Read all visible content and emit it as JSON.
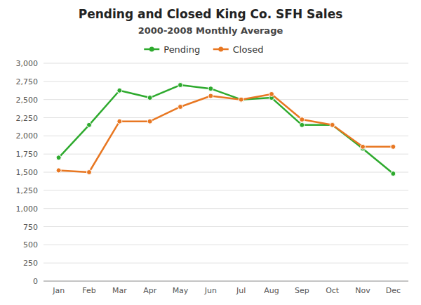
{
  "chart_data": {
    "type": "line",
    "title": "Pending and Closed King Co. SFH Sales",
    "subtitle": "2000-2008 Monthly Average",
    "categories": [
      "Jan",
      "Feb",
      "Mar",
      "Apr",
      "May",
      "Jun",
      "Jul",
      "Aug",
      "Sep",
      "Oct",
      "Nov",
      "Dec"
    ],
    "series": [
      {
        "name": "Pending",
        "color": "#2EAA2E",
        "marker": "circle",
        "line_style": "solid",
        "values": [
          1700,
          2150,
          2625,
          2525,
          2700,
          2650,
          2500,
          2525,
          2150,
          2150,
          1825,
          1480
        ]
      },
      {
        "name": "Closed",
        "color": "#E87722",
        "marker": "circle",
        "line_style": "solid",
        "values": [
          1525,
          1500,
          2200,
          2200,
          2400,
          2550,
          2500,
          2575,
          2225,
          2150,
          1850,
          1850
        ]
      }
    ],
    "ylim": [
      0,
      3000
    ],
    "yticks": [
      0,
      250,
      500,
      750,
      {
        "value": 1000,
        "label": "1,000"
      },
      {
        "value": 1250,
        "label": "1,250"
      },
      {
        "value": 1500,
        "label": "1,500"
      },
      {
        "value": 1750,
        "label": "1,750"
      },
      {
        "value": 2000,
        "label": "2,000"
      },
      {
        "value": 2250,
        "label": "2,250"
      },
      {
        "value": 2500,
        "label": "2,500"
      },
      {
        "value": 2750,
        "label": "2,750"
      },
      {
        "value": 3000,
        "label": "3,000"
      }
    ],
    "grid": true,
    "legend": "top"
  }
}
